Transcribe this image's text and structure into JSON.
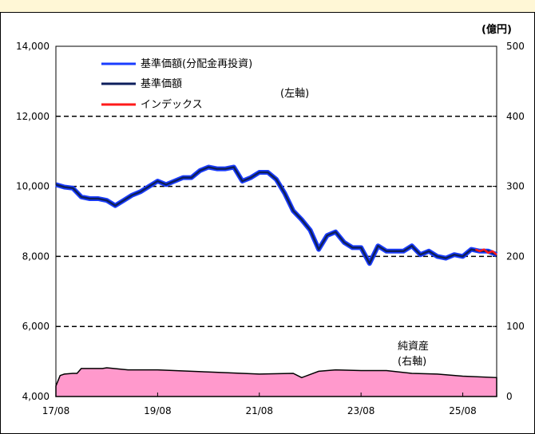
{
  "chart_data": {
    "type": "line",
    "title": "",
    "unit_label": "(億円)",
    "left_axis": {
      "label": "(左軸)",
      "ylim": [
        4000,
        14000
      ],
      "ticks": [
        4000,
        6000,
        8000,
        10000,
        12000,
        14000
      ],
      "tick_labels": [
        "4,000",
        "6,000",
        "8,000",
        "10,000",
        "12,000",
        "14,000"
      ]
    },
    "right_axis": {
      "ylim": [
        0,
        500
      ],
      "ticks": [
        0,
        100,
        200,
        300,
        400,
        500
      ],
      "tick_labels": [
        "0",
        "100",
        "200",
        "300",
        "400",
        "500"
      ]
    },
    "x_tick_labels": [
      "17/08",
      "19/08",
      "21/08",
      "23/08",
      "25/08"
    ],
    "grid": "dashed horizontal at 6,000 / 8,000 / 10,000 / 12,000",
    "legend": {
      "placement": "top-left",
      "entries": [
        {
          "label": "基準価額(分配金再投資)",
          "color": "#1a3cff"
        },
        {
          "label": "基準価額",
          "color": "#0d1f5c"
        },
        {
          "label": "インデックス",
          "color": "#ff1a1a"
        }
      ]
    },
    "area_label": {
      "line1": "純資産",
      "line2": "(右軸)"
    },
    "x_range": [
      "2017-08",
      "2026-04"
    ],
    "series": [
      {
        "name": "基準価額(分配金再投資)",
        "axis": "left",
        "color": "#1a3cff",
        "x": [
          "2017-08",
          "2017-10",
          "2017-12",
          "2018-02",
          "2018-04",
          "2018-06",
          "2018-08",
          "2018-10",
          "2018-12",
          "2019-02",
          "2019-04",
          "2019-06",
          "2019-08",
          "2019-10",
          "2019-12",
          "2020-02",
          "2020-04",
          "2020-06",
          "2020-08",
          "2020-10",
          "2020-12",
          "2021-02",
          "2021-04",
          "2021-06",
          "2021-08",
          "2021-10",
          "2021-12",
          "2022-02",
          "2022-04",
          "2022-06",
          "2022-08",
          "2022-10",
          "2022-12",
          "2023-02",
          "2023-04",
          "2023-06",
          "2023-08",
          "2023-10",
          "2023-12",
          "2024-02",
          "2024-04",
          "2024-06",
          "2024-08",
          "2024-10",
          "2024-12",
          "2025-02",
          "2025-04",
          "2025-06",
          "2025-08",
          "2025-10",
          "2025-12",
          "2026-02",
          "2026-04"
        ],
        "values": [
          10050,
          9980,
          9950,
          9700,
          9650,
          9650,
          9600,
          9450,
          9600,
          9750,
          9850,
          10000,
          10150,
          10050,
          10150,
          10250,
          10250,
          10450,
          10550,
          10500,
          10500,
          10550,
          10150,
          10250,
          10400,
          10400,
          10200,
          9800,
          9300,
          9050,
          8750,
          8200,
          8600,
          8700,
          8400,
          8250,
          8250,
          7800,
          8300,
          8150,
          8150,
          8150,
          8300,
          8050,
          8150,
          8000,
          7950,
          8050,
          8000,
          8200,
          8150,
          8150,
          8050
        ]
      },
      {
        "name": "基準価額",
        "axis": "left",
        "color": "#0d1f5c",
        "x": [
          "2017-08",
          "2017-10",
          "2017-12",
          "2018-02",
          "2018-04",
          "2018-06",
          "2018-08",
          "2018-10",
          "2018-12",
          "2019-02",
          "2019-04",
          "2019-06",
          "2019-08",
          "2019-10",
          "2019-12",
          "2020-02",
          "2020-04",
          "2020-06",
          "2020-08",
          "2020-10",
          "2020-12",
          "2021-02",
          "2021-04",
          "2021-06",
          "2021-08",
          "2021-10",
          "2021-12",
          "2022-02",
          "2022-04",
          "2022-06",
          "2022-08",
          "2022-10",
          "2022-12",
          "2023-02",
          "2023-04",
          "2023-06",
          "2023-08",
          "2023-10",
          "2023-12",
          "2024-02",
          "2024-04",
          "2024-06",
          "2024-08",
          "2024-10",
          "2024-12",
          "2025-02",
          "2025-04",
          "2025-06",
          "2025-08",
          "2025-10",
          "2025-12",
          "2026-02",
          "2026-04"
        ],
        "values": [
          10050,
          9980,
          9950,
          9700,
          9650,
          9650,
          9600,
          9450,
          9600,
          9750,
          9850,
          10000,
          10150,
          10050,
          10150,
          10250,
          10250,
          10450,
          10550,
          10500,
          10500,
          10550,
          10150,
          10250,
          10400,
          10400,
          10200,
          9800,
          9300,
          9050,
          8750,
          8200,
          8600,
          8700,
          8400,
          8250,
          8250,
          7800,
          8300,
          8150,
          8150,
          8150,
          8300,
          8050,
          8150,
          8000,
          7950,
          8050,
          8000,
          8200,
          8150,
          8150,
          8050
        ]
      },
      {
        "name": "インデックス",
        "axis": "left",
        "color": "#ff1a1a",
        "x": [
          "2025-11",
          "2025-12",
          "2026-01",
          "2026-02",
          "2026-03",
          "2026-04"
        ],
        "values": [
          8200,
          8150,
          8200,
          8100,
          8150,
          8050
        ]
      },
      {
        "name": "純資産",
        "axis": "right",
        "type": "area",
        "color": "#ff99cc",
        "x": [
          "2017-08",
          "2017-09",
          "2017-10",
          "2017-12",
          "2018-01",
          "2018-02",
          "2018-06",
          "2018-07",
          "2018-08",
          "2019-01",
          "2019-08",
          "2020-08",
          "2021-08",
          "2022-04",
          "2022-06",
          "2022-10",
          "2023-02",
          "2023-08",
          "2024-02",
          "2024-08",
          "2025-02",
          "2025-08",
          "2026-04"
        ],
        "values": [
          15,
          30,
          32,
          33,
          33,
          40,
          40,
          40,
          41,
          38,
          38,
          35,
          32,
          33,
          27,
          36,
          38,
          37,
          37,
          33,
          32,
          29,
          27
        ]
      }
    ]
  }
}
